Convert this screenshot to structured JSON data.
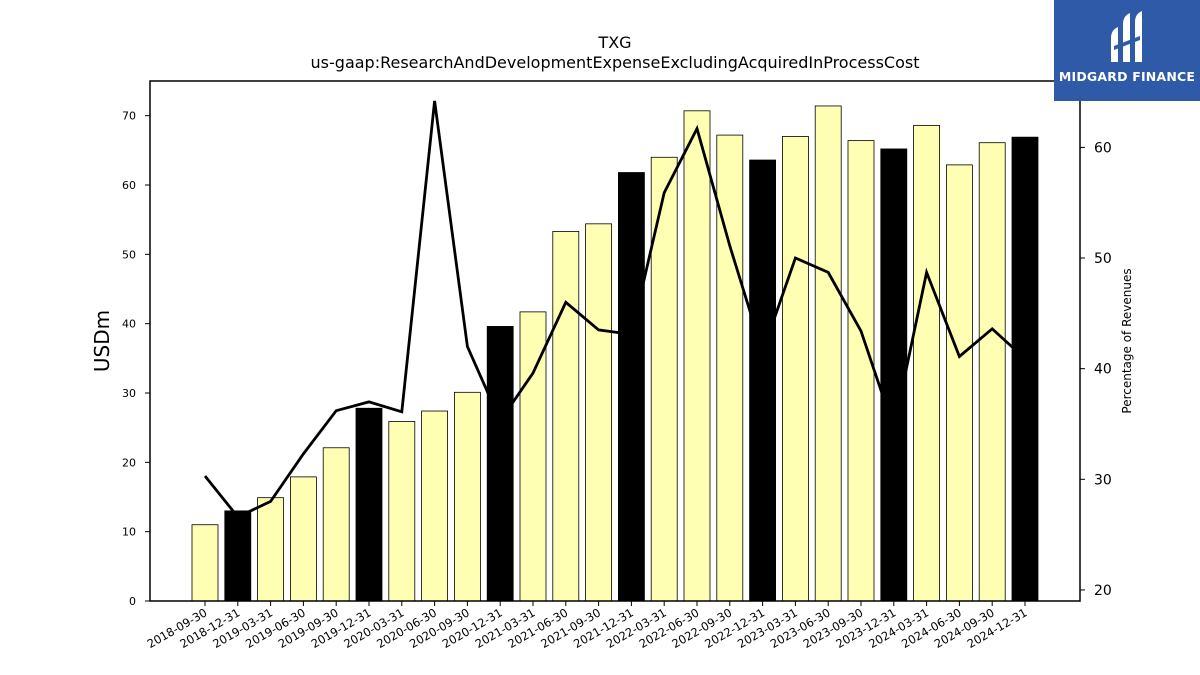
{
  "logo": {
    "text": "MIDGARD FINANCE"
  },
  "chart_data": {
    "type": "bar",
    "title": "TXG",
    "subtitle": "us-gaap:ResearchAndDevelopmentExpenseExcludingAcquiredInProcessCost",
    "ylabel": "USDm",
    "ylabel_right": "Percentage of Revenues",
    "ylim": [
      0,
      75
    ],
    "ylim_right": [
      19,
      66
    ],
    "yticks": [
      0,
      10,
      20,
      30,
      40,
      50,
      60,
      70
    ],
    "yticks_right": [
      20,
      30,
      40,
      50,
      60
    ],
    "categories": [
      "2018-09-30",
      "2018-12-31",
      "2019-03-31",
      "2019-06-30",
      "2019-09-30",
      "2019-12-31",
      "2020-03-31",
      "2020-06-30",
      "2020-09-30",
      "2020-12-31",
      "2021-03-31",
      "2021-06-30",
      "2021-09-30",
      "2021-12-31",
      "2022-03-31",
      "2022-06-30",
      "2022-09-30",
      "2022-12-31",
      "2023-03-31",
      "2023-06-30",
      "2023-09-30",
      "2023-12-31",
      "2024-03-31",
      "2024-06-30",
      "2024-09-30",
      "2024-12-31"
    ],
    "series": [
      {
        "type": "bar",
        "values": [
          11.0,
          13.0,
          14.9,
          17.9,
          22.1,
          27.8,
          25.9,
          27.4,
          30.1,
          39.6,
          41.7,
          53.3,
          54.4,
          61.8,
          64.0,
          70.7,
          67.2,
          63.6,
          67.0,
          71.4,
          66.4,
          65.2,
          68.6,
          62.9,
          66.1,
          66.9
        ],
        "highlight": [
          false,
          true,
          false,
          false,
          false,
          true,
          false,
          false,
          false,
          true,
          false,
          false,
          false,
          true,
          false,
          false,
          false,
          true,
          false,
          false,
          false,
          true,
          false,
          false,
          false,
          true
        ]
      },
      {
        "type": "line",
        "axis": "right",
        "values": [
          30.3,
          26.6,
          28.0,
          32.3,
          36.2,
          37.0,
          36.1,
          64.2,
          42.0,
          35.3,
          39.6,
          46.0,
          43.5,
          43.1,
          55.9,
          61.7,
          51.1,
          41.5,
          50.0,
          48.7,
          43.4,
          34.6,
          48.7,
          41.1,
          43.6,
          40.9
        ]
      }
    ],
    "colors": {
      "bar": "#ffffb3",
      "bar_highlight": "#000000",
      "line": "#000000",
      "logo_bg": "#2f5aa8"
    },
    "grid": false,
    "legend": "none"
  }
}
